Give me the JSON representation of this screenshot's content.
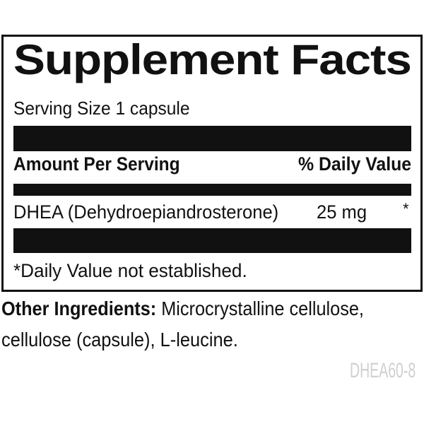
{
  "label": {
    "title": "Supplement Facts",
    "serving_size": "Serving Size 1 capsule",
    "header": {
      "amount": "Amount Per Serving",
      "daily_value": "% Daily Value"
    },
    "rows": [
      {
        "name": "DHEA (Dehydroepiandrosterone)",
        "amount": "25 mg",
        "daily_value": "*"
      }
    ],
    "footnote": "*Daily Value not established."
  },
  "other_ingredients": {
    "label": "Other Ingredients:",
    "line1": " Microcrystalline cellulose,",
    "line2": "cellulose (capsule), L-leucine."
  },
  "product_code": "DHEA60-8",
  "colors": {
    "text": "#111111",
    "code": "#d0d0d0"
  }
}
